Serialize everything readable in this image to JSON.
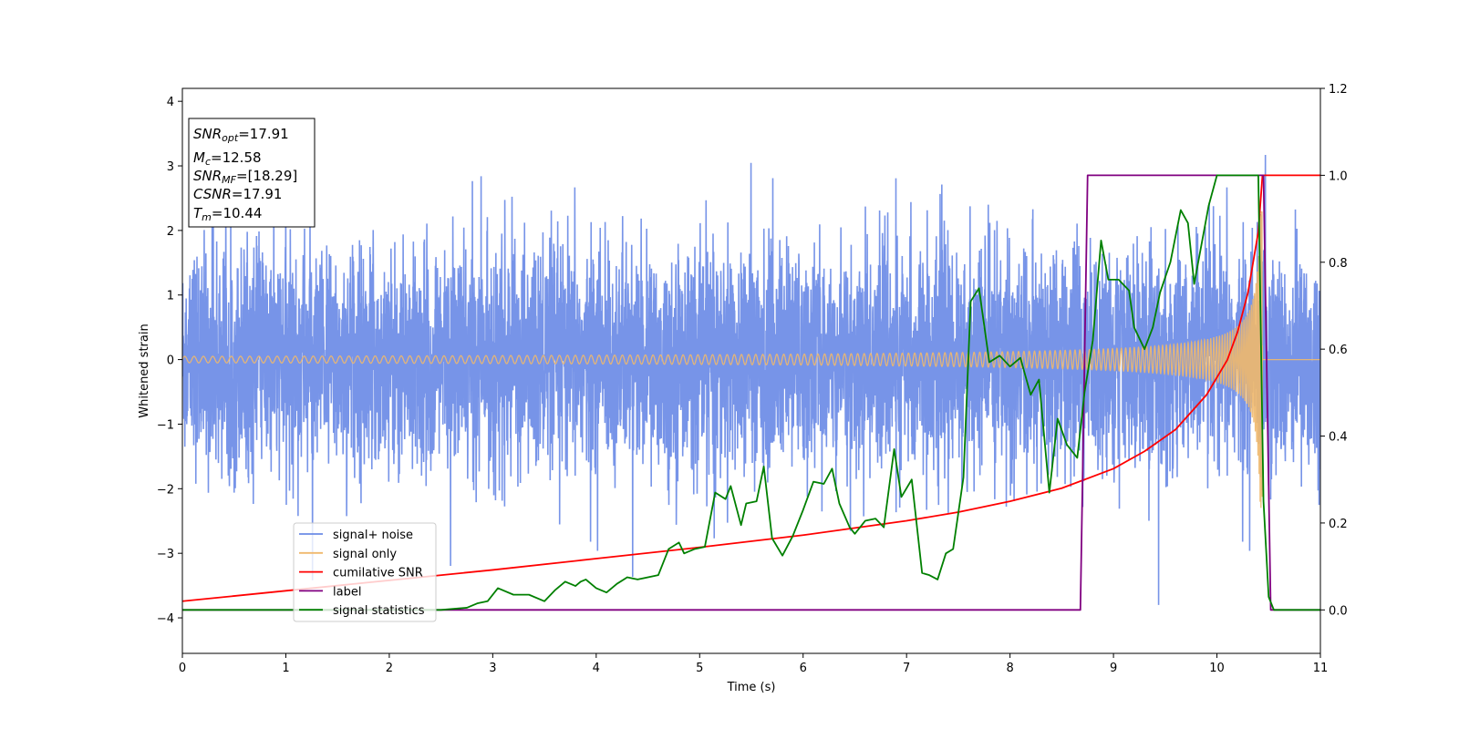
{
  "chart_data": {
    "type": "line",
    "xlabel": "Time (s)",
    "ylabel": "Whitened strain",
    "xlim": [
      0,
      11
    ],
    "ylim_left": [
      -4.55,
      4.2
    ],
    "ylim_right": [
      -0.1,
      1.2
    ],
    "xticks": [
      "0",
      "1",
      "2",
      "3",
      "4",
      "5",
      "6",
      "7",
      "8",
      "9",
      "10",
      "11"
    ],
    "yticks_left": [
      "−4",
      "−3",
      "−2",
      "−1",
      "0",
      "1",
      "2",
      "3",
      "4"
    ],
    "yticks_right": [
      "0.0",
      "0.2",
      "0.4",
      "0.6",
      "0.8",
      "1.0",
      "1.2"
    ],
    "legend_position": "lower-left",
    "info_box": {
      "snr_opt": {
        "base": "SNR",
        "sub": "opt",
        "value": "=17.91"
      },
      "mc": {
        "base": "M",
        "sub": "c",
        "value": "=12.58"
      },
      "snr_mf": {
        "base": "SNR",
        "sub": "MF",
        "value": "=[18.29]"
      },
      "csnr": {
        "base": "CSNR",
        "sub": "",
        "value": "=17.91"
      },
      "tm": {
        "base": "T",
        "sub": "m",
        "value": "=10.44"
      }
    },
    "series": [
      {
        "name": "signal+ noise",
        "axis": "left",
        "color": "#6b8be6",
        "noise_std": 1.0,
        "noise_band": [
          -2.6,
          3.3
        ],
        "merger_time": 10.44
      },
      {
        "name": "signal only",
        "axis": "left",
        "color": "#f0b86c",
        "amplitude_start": 0.05,
        "amplitude_peak": 2.3,
        "merger_time": 10.44
      },
      {
        "name": "cumilative SNR",
        "axis": "right",
        "color": "#ff0000",
        "x": [
          0,
          1,
          2,
          3,
          4,
          5,
          6,
          7,
          7.5,
          8,
          8.5,
          9,
          9.3,
          9.6,
          9.9,
          10.1,
          10.2,
          10.3,
          10.4,
          10.44,
          11
        ],
        "y": [
          0.02,
          0.044,
          0.068,
          0.092,
          0.118,
          0.144,
          0.172,
          0.205,
          0.225,
          0.25,
          0.28,
          0.325,
          0.365,
          0.415,
          0.495,
          0.575,
          0.64,
          0.73,
          0.87,
          1.0,
          1.0
        ]
      },
      {
        "name": "label",
        "axis": "right",
        "color": "#800080",
        "x": [
          0,
          8.68,
          8.75,
          10.45,
          10.52,
          11
        ],
        "y": [
          0,
          0,
          1,
          1,
          0,
          0
        ]
      },
      {
        "name": "signal statistics",
        "axis": "right",
        "color": "#008000",
        "x": [
          0,
          2.5,
          2.75,
          2.85,
          2.95,
          3.05,
          3.2,
          3.35,
          3.5,
          3.6,
          3.7,
          3.8,
          3.85,
          3.9,
          4.0,
          4.1,
          4.2,
          4.3,
          4.4,
          4.6,
          4.7,
          4.8,
          4.85,
          4.95,
          5.05,
          5.15,
          5.25,
          5.3,
          5.4,
          5.45,
          5.55,
          5.62,
          5.7,
          5.8,
          5.9,
          6.0,
          6.1,
          6.2,
          6.28,
          6.35,
          6.45,
          6.5,
          6.6,
          6.7,
          6.78,
          6.88,
          6.95,
          7.05,
          7.15,
          7.22,
          7.3,
          7.38,
          7.45,
          7.55,
          7.62,
          7.7,
          7.8,
          7.9,
          8.0,
          8.1,
          8.2,
          8.28,
          8.38,
          8.46,
          8.55,
          8.65,
          8.72,
          8.8,
          8.88,
          8.95,
          9.05,
          9.15,
          9.2,
          9.3,
          9.38,
          9.45,
          9.55,
          9.65,
          9.72,
          9.78,
          9.85,
          9.92,
          10.0,
          10.1,
          10.2,
          10.3,
          10.4,
          10.45,
          10.5,
          10.55,
          11
        ],
        "y": [
          0,
          0,
          0.005,
          0.015,
          0.02,
          0.05,
          0.035,
          0.035,
          0.02,
          0.045,
          0.065,
          0.055,
          0.065,
          0.07,
          0.05,
          0.04,
          0.06,
          0.075,
          0.07,
          0.08,
          0.14,
          0.155,
          0.13,
          0.14,
          0.145,
          0.27,
          0.255,
          0.285,
          0.195,
          0.245,
          0.25,
          0.33,
          0.165,
          0.125,
          0.17,
          0.23,
          0.295,
          0.29,
          0.325,
          0.245,
          0.19,
          0.175,
          0.205,
          0.21,
          0.19,
          0.37,
          0.26,
          0.3,
          0.085,
          0.08,
          0.07,
          0.13,
          0.14,
          0.305,
          0.71,
          0.74,
          0.57,
          0.585,
          0.56,
          0.58,
          0.495,
          0.53,
          0.27,
          0.44,
          0.38,
          0.35,
          0.5,
          0.62,
          0.85,
          0.76,
          0.76,
          0.735,
          0.65,
          0.6,
          0.65,
          0.73,
          0.8,
          0.92,
          0.89,
          0.75,
          0.84,
          0.93,
          1.0,
          1.0,
          1.0,
          1.0,
          1.0,
          0.25,
          0.03,
          0.0,
          0.0
        ]
      }
    ]
  }
}
